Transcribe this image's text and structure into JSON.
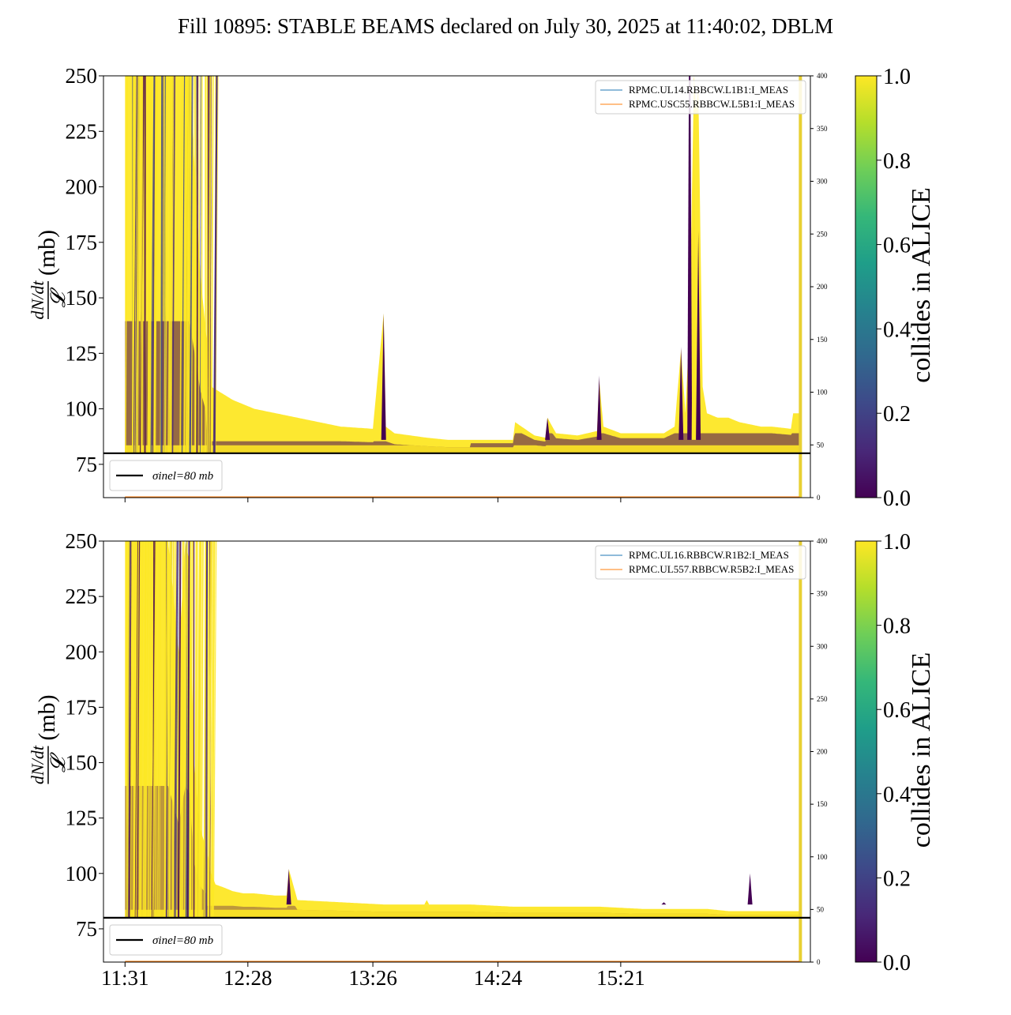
{
  "figure": {
    "title": "Fill 10895: STABLE BEAMS declared on July 30, 2025 at 11:40:02, DBLM"
  },
  "colors": {
    "viridis": [
      "#440154",
      "#482878",
      "#3e4989",
      "#31688e",
      "#26828e",
      "#1f9e89",
      "#35b779",
      "#6ece58",
      "#b5de2b",
      "#fde725"
    ],
    "reference_line": "#000000",
    "current_line_1": "#1f77b4",
    "current_line_2": "#ff7f0e"
  },
  "chart_data": [
    {
      "type": "line",
      "ylabel": "dN/dt / 𝓛 (mb)",
      "y_ticks": [
        75,
        100,
        125,
        150,
        175,
        200,
        225,
        250
      ],
      "ylim": [
        60,
        250
      ],
      "x_ticks": [
        "11:31",
        "12:28",
        "13:26",
        "14:24",
        "15:21"
      ],
      "x_tick_labels_visible": false,
      "secondary_y_ticks": [
        0,
        50,
        100,
        150,
        200,
        250,
        300,
        350,
        400
      ],
      "secondary_ylim": [
        0,
        400
      ],
      "legend_top": [
        "RPMC.UL14.RBBCW.L1B1:I_MEAS",
        "RPMC.USC55.RBBCW.L5B1:I_MEAS"
      ],
      "legend_top_placement": "top-right",
      "legend_bottom": "σinel=80 mb",
      "legend_bottom_placement": "bottom-left",
      "reference_line": 80,
      "colorbar": {
        "label": "collides in ALICE",
        "ticks": [
          "0.0",
          "0.2",
          "0.4",
          "0.6",
          "0.8",
          "1.0"
        ],
        "range": [
          0,
          1
        ]
      },
      "envelope_minutes": [
        0,
        5,
        10,
        15,
        20,
        25,
        30,
        35,
        40,
        50,
        60,
        80,
        100,
        115,
        120,
        121,
        125,
        140,
        150,
        160,
        170,
        180,
        181,
        190,
        195,
        196,
        200,
        210,
        219,
        220,
        222,
        230,
        240,
        250,
        255,
        258,
        260,
        262,
        264,
        265,
        266,
        268,
        270,
        275,
        280,
        285,
        290,
        295,
        300,
        309,
        310,
        313
      ],
      "envelope_values": [
        250,
        250,
        250,
        250,
        250,
        250,
        250,
        160,
        110,
        104,
        100,
        96,
        92,
        91,
        143,
        92,
        89,
        87,
        86,
        86,
        86,
        86,
        94,
        88,
        87,
        96,
        89,
        88,
        90,
        113,
        92,
        89,
        89,
        89,
        92,
        127,
        98,
        140,
        250,
        235,
        245,
        110,
        98,
        96,
        96,
        94,
        93,
        92,
        92,
        91,
        98,
        98
      ]
    },
    {
      "type": "line",
      "ylabel": "dN/dt / 𝓛 (mb)",
      "y_ticks": [
        75,
        100,
        125,
        150,
        175,
        200,
        225,
        250
      ],
      "ylim": [
        60,
        250
      ],
      "x_ticks": [
        "11:31",
        "12:28",
        "13:26",
        "14:24",
        "15:21"
      ],
      "x_tick_labels_visible": true,
      "secondary_y_ticks": [
        0,
        50,
        100,
        150,
        200,
        250,
        300,
        350,
        400
      ],
      "secondary_ylim": [
        0,
        400
      ],
      "legend_top": [
        "RPMC.UL16.RBBCW.R1B2:I_MEAS",
        "RPMC.UL557.RBBCW.R5B2:I_MEAS"
      ],
      "legend_top_placement": "top-right",
      "legend_bottom": "σinel=80 mb",
      "legend_bottom_placement": "bottom-left",
      "reference_line": 80,
      "colorbar": {
        "label": "collides in ALICE",
        "ticks": [
          "0.0",
          "0.2",
          "0.4",
          "0.6",
          "0.8",
          "1.0"
        ],
        "range": [
          0,
          1
        ]
      },
      "envelope_minutes": [
        0,
        5,
        10,
        15,
        20,
        25,
        28,
        30,
        32,
        35,
        38,
        40,
        42,
        45,
        50,
        55,
        60,
        70,
        75,
        76,
        80,
        100,
        120,
        140,
        160,
        180,
        200,
        220,
        240,
        250,
        260,
        270,
        280,
        300,
        313
      ],
      "envelope_values": [
        250,
        250,
        250,
        250,
        250,
        200,
        250,
        240,
        150,
        120,
        110,
        100,
        95,
        94,
        92,
        91,
        91,
        90,
        90,
        102,
        88,
        87,
        86,
        86,
        86,
        85,
        85,
        85,
        84,
        84,
        84,
        84,
        83,
        83,
        83
      ]
    }
  ]
}
